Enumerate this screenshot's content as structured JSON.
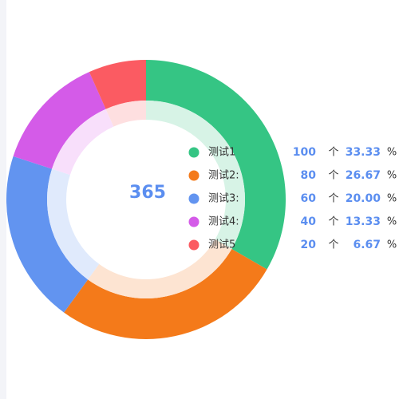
{
  "chart_data": {
    "type": "pie",
    "center_label": "365",
    "unit_count": "个",
    "unit_percent": "%",
    "series": [
      {
        "name": "测试1",
        "legend_label": "测试1",
        "value": 100,
        "value_text": "100",
        "percent": 33.33,
        "percent_text": "33.33",
        "color": "#35c584",
        "inner_color": "#d7f3e6"
      },
      {
        "name": "测试2",
        "legend_label": "测试2:",
        "value": 80,
        "value_text": "80",
        "percent": 26.67,
        "percent_text": "26.67",
        "color": "#f47a1a",
        "inner_color": "#fde4d2"
      },
      {
        "name": "测试3",
        "legend_label": "测试3:",
        "value": 60,
        "value_text": "60",
        "percent": 20.0,
        "percent_text": "20.00",
        "color": "#6294f0",
        "inner_color": "#e0eafc"
      },
      {
        "name": "测试4",
        "legend_label": "测试4:",
        "value": 40,
        "value_text": "40",
        "percent": 13.33,
        "percent_text": "13.33",
        "color": "#d45be8",
        "inner_color": "#f8dffb"
      },
      {
        "name": "测试5",
        "legend_label": "测试5",
        "value": 20,
        "value_text": "20",
        "percent": 6.67,
        "percent_text": "6.67",
        "color": "#fb5b62",
        "inner_color": "#fedfe0"
      }
    ]
  }
}
